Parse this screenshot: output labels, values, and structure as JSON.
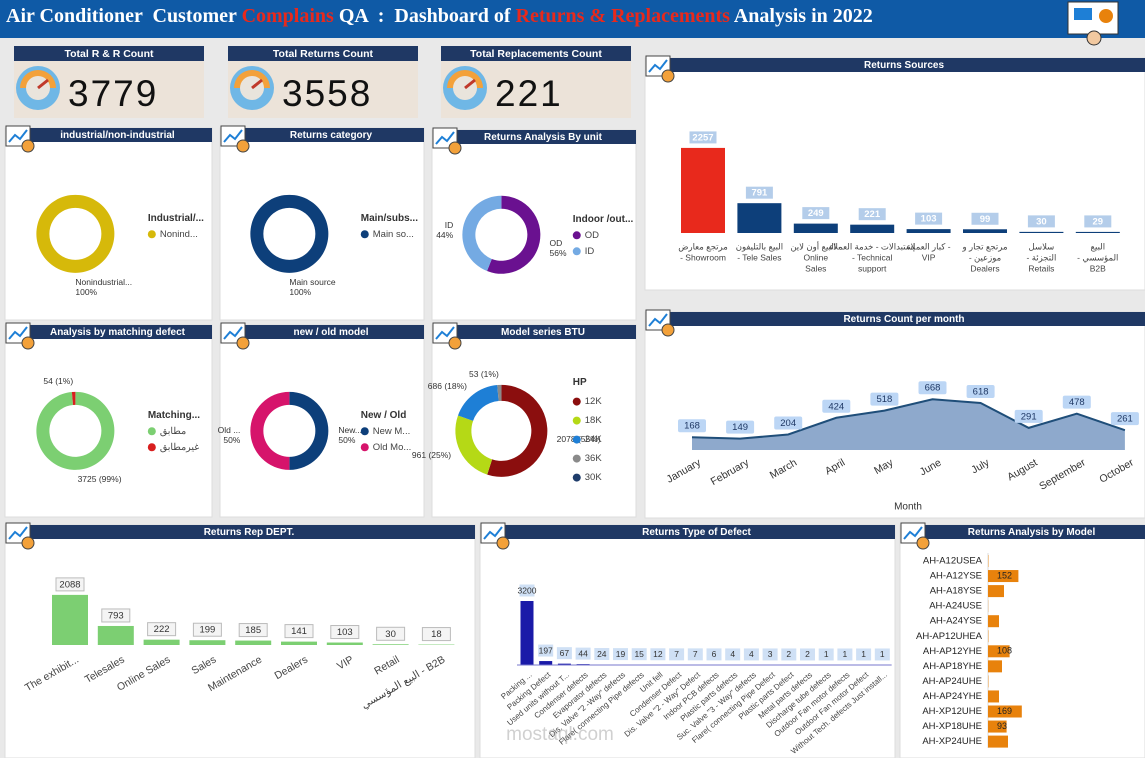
{
  "header": {
    "title_parts": [
      {
        "text": "Air Conditioner  Customer ",
        "color": "#ffffff"
      },
      {
        "text": "Complains",
        "color": "#e8291c"
      },
      {
        "text": " QA  :  Dashboard of ",
        "color": "#ffffff"
      },
      {
        "text": "Returns & Replacements",
        "color": "#e8291c"
      },
      {
        "text": " Analysis in 2022",
        "color": "#ffffff"
      }
    ]
  },
  "kpis": [
    {
      "label": "Total R & R Count",
      "value": 3779
    },
    {
      "label": "Total Returns Count",
      "value": 3558
    },
    {
      "label": "Total Replacements Count",
      "value": 221
    }
  ],
  "watermark": "mostaql.com",
  "chart_data": [
    {
      "type": "pie",
      "title": "industrial/non-industrial",
      "legend_title": "Industrial/...",
      "categories": [
        "Nonind..."
      ],
      "slice_labels": [
        "Nonindustrial..."
      ],
      "values": [
        100
      ],
      "value_labels": [
        "100%"
      ],
      "colors": [
        "#d6b90a"
      ]
    },
    {
      "type": "pie",
      "title": "Returns category",
      "legend_title": "Main/subs...",
      "categories": [
        "Main so..."
      ],
      "slice_labels": [
        "Main source"
      ],
      "values": [
        100
      ],
      "value_labels": [
        "100%"
      ],
      "colors": [
        "#0d3f7a"
      ]
    },
    {
      "type": "pie",
      "title": "Returns Analysis By unit",
      "legend_title": "Indoor /out...",
      "categories": [
        "OD",
        "ID"
      ],
      "slice_labels": [
        "OD",
        "ID"
      ],
      "values": [
        56,
        44
      ],
      "value_labels": [
        "56%",
        "44%"
      ],
      "colors": [
        "#6a1190",
        "#74aae3"
      ]
    },
    {
      "type": "pie",
      "title": "Analysis by matching defect",
      "legend_title": "Matching...",
      "categories": [
        "مطابق",
        "غيرمطابق"
      ],
      "values": [
        3725,
        54
      ],
      "value_labels": [
        "3725 (99%)",
        "54 (1%)"
      ],
      "colors": [
        "#7ccf72",
        "#d81e1e"
      ]
    },
    {
      "type": "pie",
      "title": "new / old model",
      "legend_title": "New / Old",
      "categories": [
        "New M...",
        "Old Mo..."
      ],
      "slice_labels": [
        "New...",
        "Old ..."
      ],
      "values": [
        50,
        50
      ],
      "value_labels": [
        "50%",
        "50%"
      ],
      "colors": [
        "#0d3f7a",
        "#d6146b"
      ]
    },
    {
      "type": "pie",
      "title": "Model series BTU",
      "legend_title": "HP",
      "categories": [
        "12K",
        "18K",
        "24K",
        "36K",
        "30K"
      ],
      "values": [
        2078,
        961,
        686,
        53,
        1
      ],
      "value_labels": [
        "2078 (55%)",
        "961 (25%)",
        "686 (18%)",
        "53 (1%)",
        null
      ],
      "colors": [
        "#8b0e0e",
        "#b5d916",
        "#1e7fd6",
        "#8a8a8a",
        "#1f3d6b"
      ]
    },
    {
      "type": "bar",
      "title": "Returns Sources",
      "categories": [
        [
          "مرتجع معارض",
          "- Showroom"
        ],
        [
          "البيع بالتليفون",
          "- Tele Sales"
        ],
        [
          "البيع أون لاين -",
          "Online",
          "Sales"
        ],
        [
          "إستبدالات - خدمة العملاء",
          "- Technical",
          "support"
        ],
        [
          "كبار العملاء -",
          "VIP"
        ],
        [
          "مرتجع تجار و",
          "- موزعين",
          "Dealers"
        ],
        [
          "سلاسل",
          "- التجزئة",
          "Retails"
        ],
        [
          "البيع",
          "- المؤسسي",
          "B2B"
        ]
      ],
      "values": [
        2257,
        791,
        249,
        221,
        103,
        99,
        30,
        29
      ],
      "colors": [
        "#e8291c",
        "#0d3f7a",
        "#0d3f7a",
        "#0d3f7a",
        "#0d3f7a",
        "#0d3f7a",
        "#0d3f7a",
        "#0d3f7a"
      ]
    },
    {
      "type": "area",
      "title": "Returns Count per month",
      "x_label": "Month",
      "categories": [
        "January",
        "February",
        "March",
        "April",
        "May",
        "June",
        "July",
        "August",
        "September",
        "October"
      ],
      "values": [
        168,
        149,
        204,
        424,
        518,
        668,
        618,
        291,
        478,
        261
      ],
      "color": "#1f4e79",
      "fill": "#8ea9cc"
    },
    {
      "type": "bar",
      "title": "Returns Rep DEPT.",
      "categories": [
        "The exhibit...",
        "Telesales",
        "Online Sales",
        "Sales",
        "Maintenance",
        "Dealers",
        "VIP",
        "Retail",
        "البيع المؤسسي - B2B"
      ],
      "values": [
        2088,
        793,
        222,
        199,
        185,
        141,
        103,
        30,
        18
      ],
      "color": "#7ccf72"
    },
    {
      "type": "bar",
      "title": "Returns Type of Defect",
      "categories": [
        "Packing ...",
        "Packing Defect",
        "Used units without T...",
        "Condenser defects",
        "Evaporator defects",
        "Dis. Valve \"2 -Way\" defects",
        "Flare( connecting Pipe defects",
        "Unit fell",
        "Condenser Defect",
        "Dis. Valve \"2 - Way\" Defect",
        "Indoor PCB defects",
        "Plastic parts defects",
        "Suc. Valve \"3 - Way\" defects",
        "Flare( connecting Pipe Defect",
        "Plastic parts Defect",
        "Metal parts defects",
        "Discharge tube defects",
        "Outdoor Fan motor defects",
        "Outdoor Fan motor Defect",
        "Without Tech. defects Just install..."
      ],
      "values": [
        3200,
        197,
        67,
        44,
        24,
        19,
        15,
        12,
        7,
        7,
        6,
        4,
        4,
        3,
        2,
        2,
        1,
        1,
        1,
        1
      ],
      "color": "#1a1aa8"
    },
    {
      "type": "hbar",
      "title": "Returns Analysis by Model",
      "categories": [
        "AH-A12USEA",
        "AH-A12YSE",
        "AH-A18YSE",
        "AH-A24USE",
        "AH-A24YSE",
        "AH-AP12UHEA",
        "AH-AP12YHE",
        "AH-AP18YHE",
        "AH-AP24UHE",
        "AH-AP24YHE",
        "AH-XP12UHE",
        "AH-XP18UHE",
        "AH-XP24UHE"
      ],
      "values": [
        2,
        152,
        80,
        1,
        55,
        2,
        108,
        70,
        2,
        55,
        169,
        93,
        100
      ],
      "value_labels": [
        null,
        "152",
        null,
        null,
        null,
        null,
        "108",
        null,
        null,
        null,
        "169",
        "93",
        null
      ],
      "color": "#e8820c"
    }
  ]
}
